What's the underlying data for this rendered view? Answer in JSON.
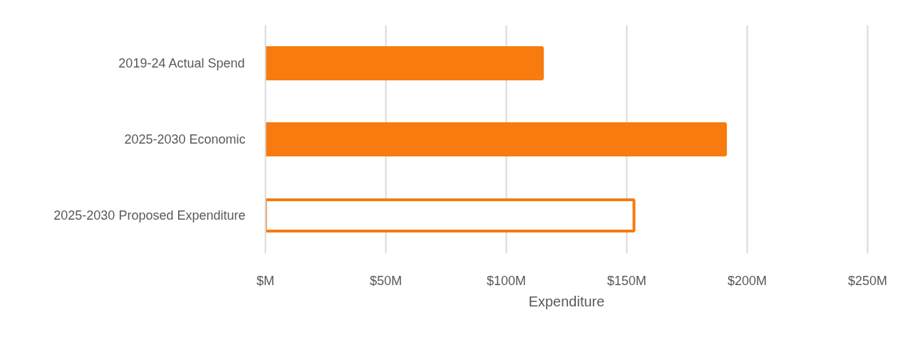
{
  "chart_data": {
    "type": "bar",
    "orientation": "horizontal",
    "xlabel": "Expenditure",
    "categories": [
      "2019-24 Actual Spend",
      "2025-2030 Economic",
      "2025-2030 Proposed Expenditure"
    ],
    "values": [
      115,
      191,
      153
    ],
    "color": "#f77b0f",
    "colors": [
      "#f77b0f",
      "#f77b0f",
      "#ffffff"
    ],
    "xlim": [
      0,
      250
    ],
    "xticks": [
      {
        "value": 0,
        "label": "$M"
      },
      {
        "value": 50,
        "label": "$50M"
      },
      {
        "value": 100,
        "label": "$100M"
      },
      {
        "value": 150,
        "label": "$150M"
      },
      {
        "value": 200,
        "label": "$200M"
      },
      {
        "value": 250,
        "label": "$250M"
      }
    ],
    "grid": "x"
  }
}
